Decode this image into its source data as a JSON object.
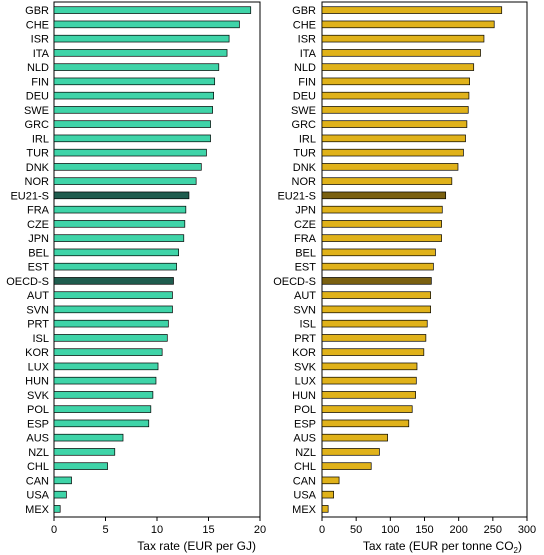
{
  "chart_data": [
    {
      "type": "bar",
      "orientation": "horizontal",
      "xlabel": "Tax rate (EUR per GJ)",
      "xlim": [
        0,
        20
      ],
      "xticks": [
        "0",
        "5",
        "10",
        "15",
        "20"
      ],
      "bar_color": "#3fd4a8",
      "highlight_color": "#1f5c4e",
      "highlight": [
        "EU21-S",
        "OECD-S"
      ],
      "categories": [
        "GBR",
        "CHE",
        "ISR",
        "ITA",
        "NLD",
        "FIN",
        "DEU",
        "SWE",
        "GRC",
        "IRL",
        "TUR",
        "DNK",
        "NOR",
        "EU21-S",
        "FRA",
        "CZE",
        "JPN",
        "BEL",
        "EST",
        "OECD-S",
        "AUT",
        "SVN",
        "PRT",
        "ISL",
        "KOR",
        "LUX",
        "HUN",
        "SVK",
        "POL",
        "ESP",
        "AUS",
        "NZL",
        "CHL",
        "CAN",
        "USA",
        "MEX"
      ],
      "values": [
        19.1,
        18.0,
        17.0,
        16.8,
        16.0,
        15.6,
        15.5,
        15.4,
        15.2,
        15.2,
        14.8,
        14.3,
        13.8,
        13.1,
        12.8,
        12.7,
        12.6,
        12.1,
        11.9,
        11.6,
        11.5,
        11.5,
        11.1,
        11.0,
        10.5,
        10.1,
        9.9,
        9.6,
        9.4,
        9.2,
        6.7,
        5.9,
        5.2,
        1.7,
        1.2,
        0.6
      ]
    },
    {
      "type": "bar",
      "orientation": "horizontal",
      "xlabel_main": "Tax rate (EUR per tonne CO",
      "xlabel_sub": "2",
      "xlabel_close": ")",
      "xlim": [
        0,
        300
      ],
      "xticks": [
        "0",
        "50",
        "100",
        "150",
        "200",
        "250",
        "300"
      ],
      "bar_color": "#e0b21a",
      "highlight_color": "#7a6010",
      "highlight": [
        "EU21-S",
        "OECD-S"
      ],
      "categories": [
        "GBR",
        "CHE",
        "ISR",
        "ITA",
        "NLD",
        "FIN",
        "DEU",
        "SWE",
        "GRC",
        "IRL",
        "TUR",
        "DNK",
        "NOR",
        "EU21-S",
        "JPN",
        "CZE",
        "FRA",
        "BEL",
        "EST",
        "OECD-S",
        "AUT",
        "SVN",
        "ISL",
        "PRT",
        "KOR",
        "SVK",
        "LUX",
        "HUN",
        "POL",
        "ESP",
        "AUS",
        "NZL",
        "CHL",
        "CAN",
        "USA",
        "MEX"
      ],
      "values": [
        263,
        252,
        237,
        232,
        222,
        216,
        215,
        214,
        212,
        210,
        207,
        199,
        190,
        181,
        176,
        175,
        175,
        166,
        163,
        160,
        159,
        159,
        154,
        152,
        149,
        139,
        138,
        137,
        132,
        127,
        96,
        84,
        72,
        25,
        17,
        9
      ]
    }
  ]
}
